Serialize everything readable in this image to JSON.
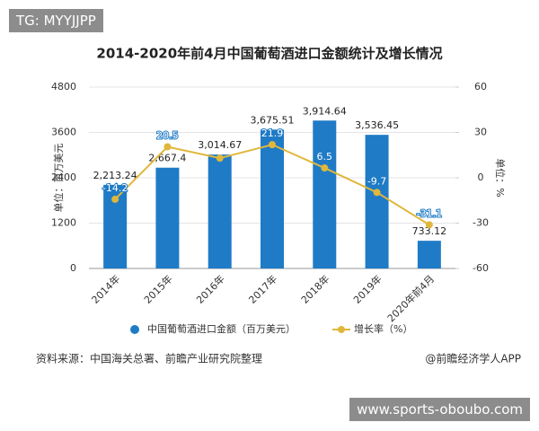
{
  "overlay_top": "TG: MYYJJPP",
  "overlay_bottom": "www.sports-oboubo.com",
  "source": "资料来源：中国海关总署、前瞻产业研究院整理",
  "credit": "@前瞻经济学人APP",
  "chart_data": {
    "type": "bar-line",
    "title": "2014-2020年前4月中国葡萄酒进口金额统计及增长情况",
    "y_label": "单位：百万美元",
    "y2_label": "单位：%",
    "categories": [
      "2014年",
      "2015年",
      "2016年",
      "2017年",
      "2018年",
      "2019年",
      "2020年前4月"
    ],
    "series": [
      {
        "name": "中国葡萄酒进口金额（百万美元）",
        "type": "bar",
        "color": "#1f7bc6",
        "values": [
          2213.24,
          2667.4,
          3014.67,
          3675.51,
          3914.64,
          3536.45,
          733.12
        ],
        "value_labels": [
          "2,213.24",
          "2,667.4",
          "3,014.67",
          "3,675.51",
          "3,914.64",
          "3,536.45",
          "733.12"
        ]
      },
      {
        "name": "增长率（%）",
        "type": "line",
        "axis": "y2",
        "color": "#e0b73c",
        "values": [
          -14.2,
          20.5,
          13,
          21.9,
          6.5,
          -9.7,
          -31.1
        ],
        "value_labels": [
          "-14.2",
          "20.5",
          null,
          "21.9",
          "6.5",
          "-9.7",
          "-31.1"
        ]
      }
    ],
    "ylim": [
      0,
      4800
    ],
    "yticks": [
      0,
      1200,
      2400,
      3600,
      4800
    ],
    "y2lim": [
      -60,
      60
    ],
    "y2ticks": [
      -60,
      -30,
      0,
      30,
      60
    ],
    "legend": "bottom"
  }
}
